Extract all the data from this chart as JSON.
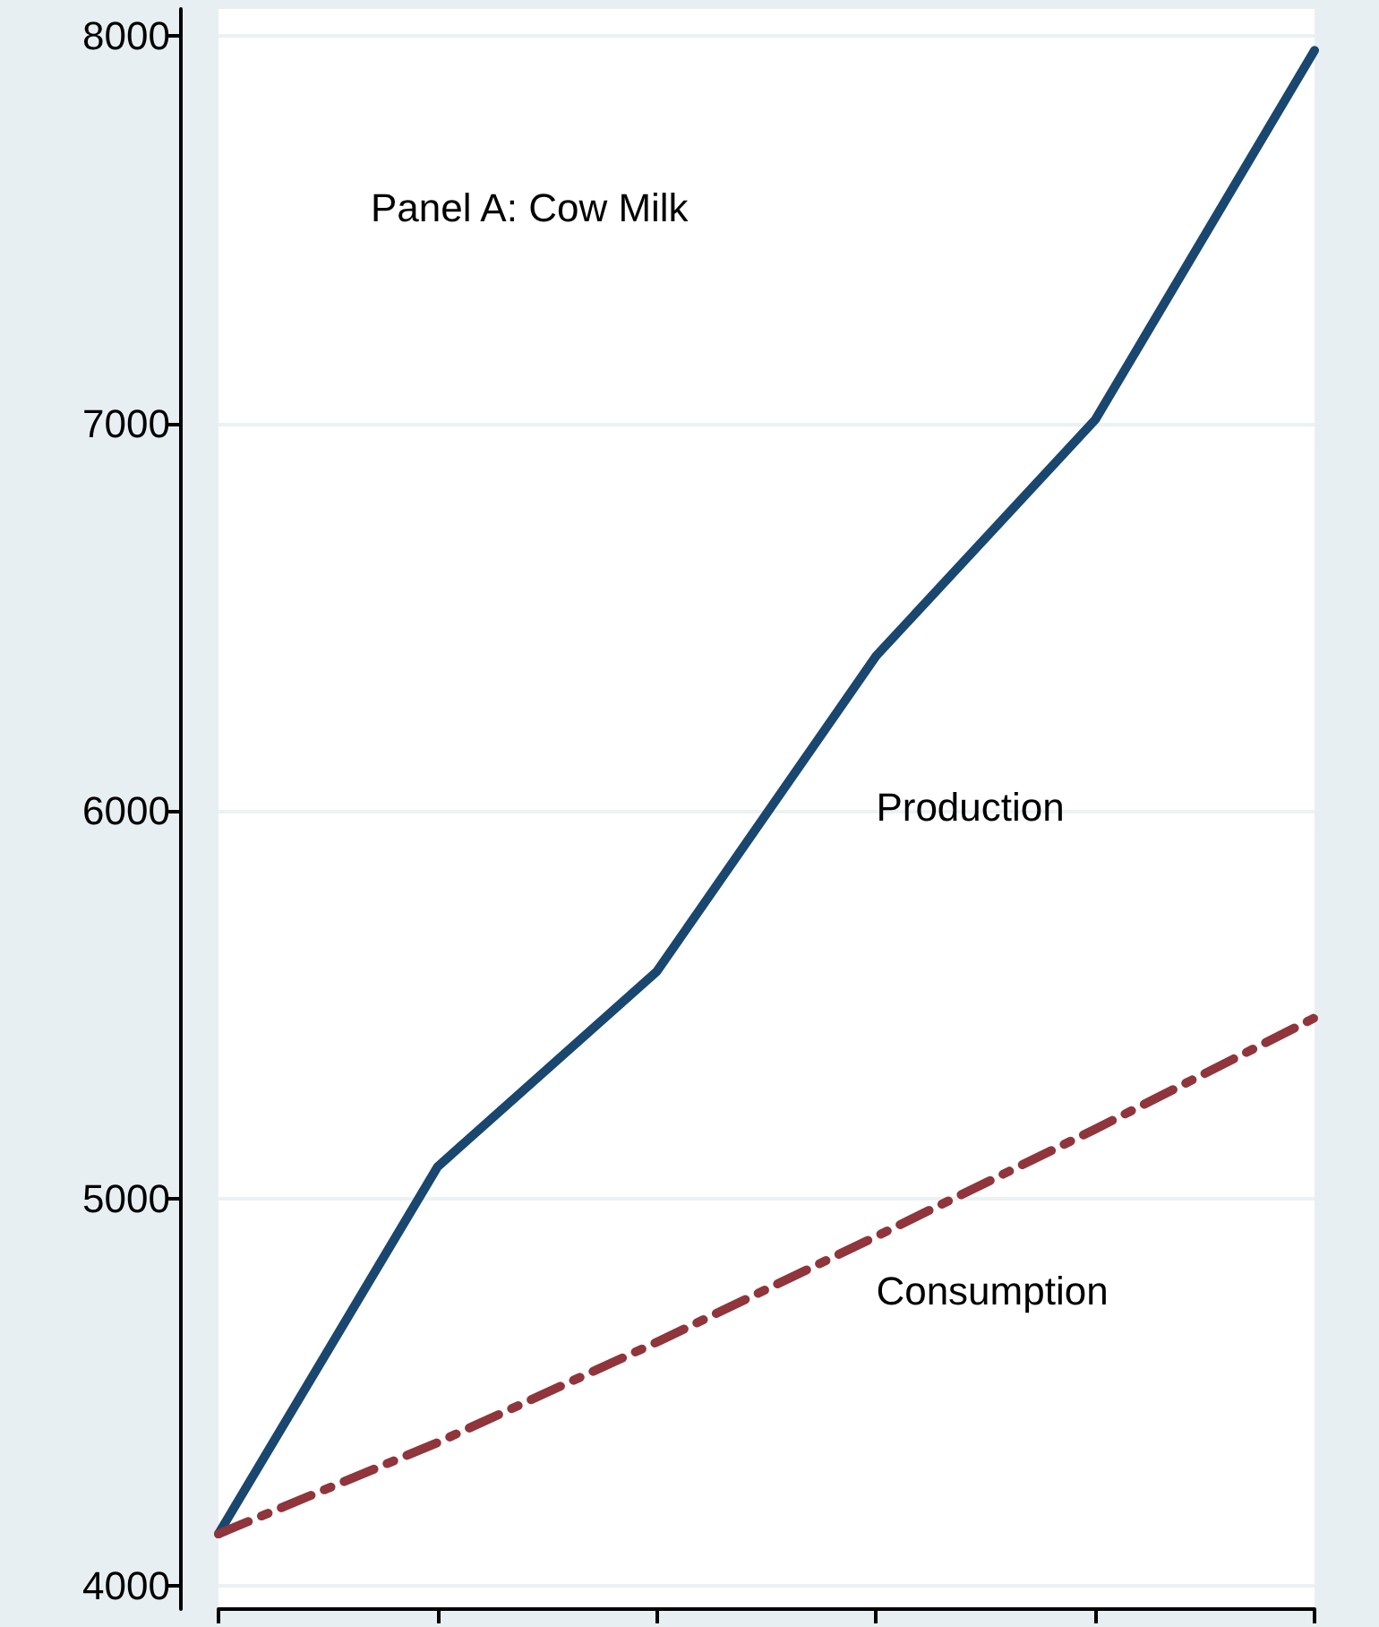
{
  "chart_data": {
    "type": "line",
    "title": "Panel A: Cow Milk",
    "categories": [
      null,
      null,
      null,
      null,
      null,
      null
    ],
    "series": [
      {
        "name": "Production",
        "color": "#1a476f",
        "values": [
          4134,
          5082,
          5586,
          6400,
          7010,
          7963
        ],
        "line_style": "solid"
      },
      {
        "name": "Consumption",
        "color": "#90353b",
        "values": [
          4134,
          4370,
          4629,
          4902,
          5179,
          5466
        ],
        "line_style": "dashdot"
      }
    ],
    "ylim": [
      3940,
      8070
    ],
    "yticks": [
      4000,
      5000,
      6000,
      7000,
      8000
    ],
    "grid": "y",
    "tick_labels": "y",
    "marker": "none",
    "legend": false
  }
}
